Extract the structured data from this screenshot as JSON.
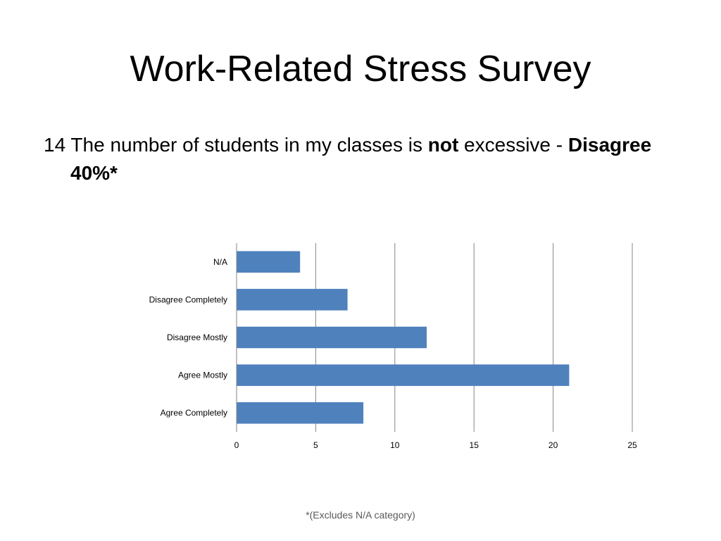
{
  "slide": {
    "title": "Work-Related Stress Survey",
    "question": {
      "prefix": "14 The number of students in my classes is ",
      "emphasis": "not",
      "suffix": " excessive - ",
      "answer": "Disagree 40%*"
    },
    "footnote": "*(Excludes N/A category)"
  },
  "chart_data": {
    "type": "bar",
    "orientation": "horizontal",
    "categories": [
      "N/A",
      "Disagree Completely",
      "Disagree Mostly",
      "Agree Mostly",
      "Agree Completely"
    ],
    "values": [
      4,
      7,
      12,
      21,
      8
    ],
    "xlim": [
      0,
      25
    ],
    "xticks": [
      0,
      5,
      10,
      15,
      20,
      25
    ],
    "grid": "vertical",
    "legend": "none",
    "colors": {
      "bar": "#4f81bd",
      "grid": "#868686",
      "axis": "#868686"
    }
  }
}
